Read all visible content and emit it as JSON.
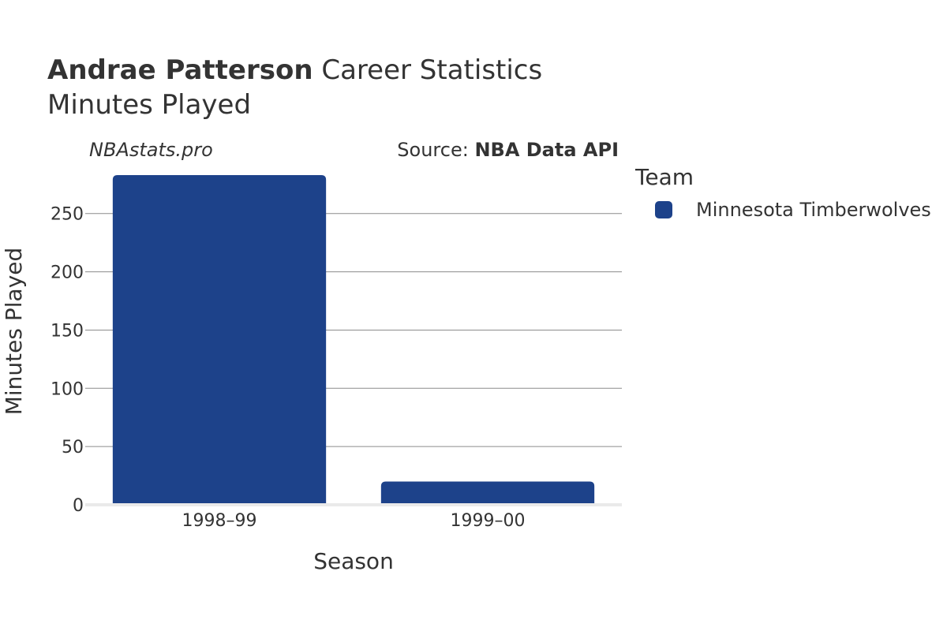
{
  "header": {
    "player_name": "Andrae Patterson",
    "title_rest": "Career Statistics",
    "subtitle": "Minutes Played",
    "credit": "NBAstats.pro",
    "source_prefix": "Source: ",
    "source_name": "NBA Data API"
  },
  "legend": {
    "title": "Team",
    "items": [
      {
        "label": "Minnesota Timberwolves",
        "color": "#1d428a"
      }
    ]
  },
  "chart_data": {
    "type": "bar",
    "categories": [
      "1998–99",
      "1999–00"
    ],
    "series": [
      {
        "name": "Minnesota Timberwolves",
        "values": [
          283,
          20
        ],
        "color": "#1d428a"
      }
    ],
    "xlabel": "Season",
    "ylabel": "Minutes Played",
    "ylim": [
      0,
      283
    ],
    "yticks": [
      0,
      50,
      100,
      150,
      200,
      250
    ],
    "grid": true
  }
}
